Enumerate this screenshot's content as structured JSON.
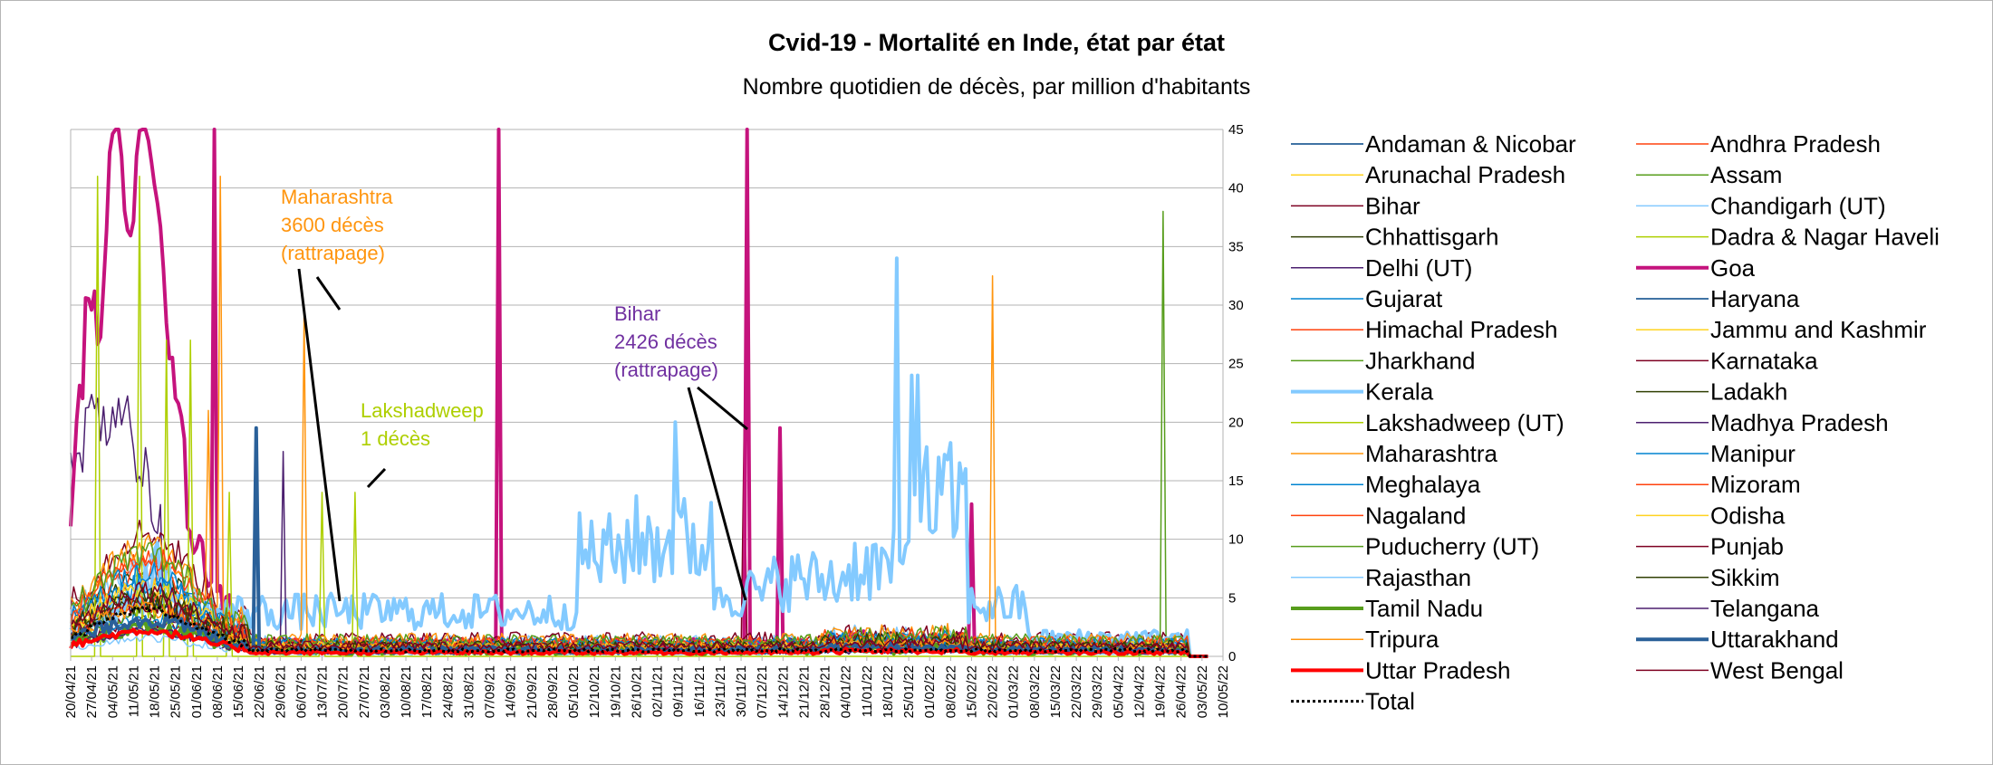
{
  "chart_data": {
    "type": "line",
    "title": "Cvid-19 - Mortalité en Inde, état par état",
    "subtitle": "Nombre quotidien de décès, par million d'habitants",
    "ylim": [
      0,
      45
    ],
    "yticks": [
      0,
      5,
      10,
      15,
      20,
      25,
      30,
      35,
      40,
      45
    ],
    "x_start": "2021-04-20",
    "x_end": "2022-05-10",
    "xticks": [
      "20/04/21",
      "27/04/21",
      "04/05/21",
      "11/05/21",
      "18/05/21",
      "25/05/21",
      "01/06/21",
      "08/06/21",
      "15/06/21",
      "22/06/21",
      "29/06/21",
      "06/07/21",
      "13/07/21",
      "20/07/21",
      "27/07/21",
      "03/08/21",
      "10/08/21",
      "17/08/21",
      "24/08/21",
      "31/08/21",
      "07/09/21",
      "14/09/21",
      "21/09/21",
      "28/09/21",
      "05/10/21",
      "12/10/21",
      "19/10/21",
      "26/10/21",
      "02/11/21",
      "09/11/21",
      "16/11/21",
      "23/11/21",
      "30/11/21",
      "07/12/21",
      "14/12/21",
      "21/12/21",
      "28/12/21",
      "04/01/22",
      "11/01/22",
      "18/01/22",
      "25/01/22",
      "01/02/22",
      "08/02/22",
      "15/02/22",
      "22/02/22",
      "01/03/22",
      "08/03/22",
      "15/03/22",
      "22/03/22",
      "29/03/22",
      "05/04/22",
      "12/04/22",
      "19/04/22",
      "26/04/22",
      "03/05/22",
      "10/05/22"
    ],
    "grid": true,
    "legend_position": "right",
    "series": [
      {
        "name": "Andaman & Nicobar",
        "color": "#004586",
        "lw": 1.5,
        "base": 0.6,
        "noise": 0.8
      },
      {
        "name": "Andhra Pradesh",
        "color": "#ff420e",
        "lw": 1.5,
        "base": 1.2,
        "noise": 0.8
      },
      {
        "name": "Arunachal Pradesh",
        "color": "#ffd320",
        "lw": 1.5,
        "base": 0.6,
        "noise": 0.9
      },
      {
        "name": "Assam",
        "color": "#579d1c",
        "lw": 1.5,
        "base": 0.8,
        "noise": 0.6,
        "spikes": [
          [
            365,
            38
          ]
        ]
      },
      {
        "name": "Bihar",
        "color": "#7e0021",
        "lw": 1.5,
        "base": 0.4,
        "noise": 0.5,
        "spikes": [
          [
            225,
            19.5
          ]
        ]
      },
      {
        "name": "Chandigarh (UT)",
        "color": "#83caff",
        "lw": 1.5,
        "base": 1.0,
        "noise": 1.2
      },
      {
        "name": "Chhattisgarh",
        "color": "#314004",
        "lw": 1.5,
        "base": 1.0,
        "noise": 0.8
      },
      {
        "name": "Dadra & Nagar Haveli",
        "color": "#aecf00",
        "lw": 1.5,
        "base": 0.5,
        "noise": 1.0
      },
      {
        "name": "Delhi (UT)",
        "color": "#4b1f6f",
        "lw": 1.5,
        "base": 0.5,
        "noise": 0.5,
        "early": [
          [
            0,
            16
          ],
          [
            5,
            19
          ],
          [
            12,
            21
          ],
          [
            20,
            19
          ],
          [
            30,
            12
          ]
        ]
      },
      {
        "name": "Goa",
        "color": "#c5137d",
        "lw": 4,
        "base": 0.8,
        "noise": 1.0,
        "spikes": [
          [
            48,
            45
          ],
          [
            143,
            45
          ],
          [
            226,
            45
          ],
          [
            237,
            19.5
          ],
          [
            301,
            13
          ]
        ],
        "early": [
          [
            0,
            12
          ],
          [
            5,
            28
          ],
          [
            10,
            30
          ],
          [
            14,
            45
          ],
          [
            20,
            38
          ],
          [
            25,
            45
          ],
          [
            28,
            40
          ],
          [
            35,
            22
          ],
          [
            42,
            8
          ],
          [
            55,
            3
          ]
        ]
      },
      {
        "name": "Gujarat",
        "color": "#0084d1",
        "lw": 1.5,
        "base": 0.4,
        "noise": 0.6
      },
      {
        "name": "Haryana",
        "color": "#004586",
        "lw": 1.5,
        "base": 0.6,
        "noise": 0.6
      },
      {
        "name": "Himachal Pradesh",
        "color": "#ff420e",
        "lw": 1.5,
        "base": 1.0,
        "noise": 0.8
      },
      {
        "name": "Jammu and Kashmir",
        "color": "#ffd320",
        "lw": 1.5,
        "base": 0.8,
        "noise": 0.7
      },
      {
        "name": "Jharkhand",
        "color": "#579d1c",
        "lw": 1.5,
        "base": 0.5,
        "noise": 0.6
      },
      {
        "name": "Karnataka",
        "color": "#7e0021",
        "lw": 1.5,
        "base": 1.5,
        "noise": 1.2
      },
      {
        "name": "Kerala",
        "color": "#83caff",
        "lw": 4,
        "base": 3.0,
        "noise": 3.5,
        "kerala": true
      },
      {
        "name": "Ladakh",
        "color": "#314004",
        "lw": 1.5,
        "base": 0.6,
        "noise": 1.0
      },
      {
        "name": "Lakshadweep (UT)",
        "color": "#aecf00",
        "lw": 1.5,
        "base": 0.0,
        "noise": 0.0,
        "spikes": [
          [
            9,
            41
          ],
          [
            23,
            41
          ],
          [
            32,
            27
          ],
          [
            40,
            27
          ],
          [
            53,
            14
          ],
          [
            84,
            14
          ],
          [
            95,
            14
          ]
        ]
      },
      {
        "name": "Madhya Pradesh",
        "color": "#4b1f6f",
        "lw": 1.5,
        "base": 0.3,
        "noise": 0.4,
        "spikes": [
          [
            71,
            17.5
          ]
        ]
      },
      {
        "name": "Maharashtra",
        "color": "#ff950e",
        "lw": 1.5,
        "base": 1.3,
        "noise": 1.2,
        "spikes": [
          [
            78,
            29.5
          ],
          [
            50,
            41
          ],
          [
            46,
            21
          ],
          [
            308,
            32.5
          ]
        ]
      },
      {
        "name": "Manipur",
        "color": "#0084d1",
        "lw": 1.5,
        "base": 1.0,
        "noise": 1.0
      },
      {
        "name": "Meghalaya",
        "color": "#0084d1",
        "lw": 1.5,
        "base": 0.8,
        "noise": 1.0
      },
      {
        "name": "Mizoram",
        "color": "#ff420e",
        "lw": 1.5,
        "base": 1.2,
        "noise": 1.0
      },
      {
        "name": "Nagaland",
        "color": "#ff420e",
        "lw": 1.5,
        "base": 0.6,
        "noise": 0.8
      },
      {
        "name": "Odisha",
        "color": "#ffd320",
        "lw": 1.5,
        "base": 0.8,
        "noise": 0.8
      },
      {
        "name": "Puducherry (UT)",
        "color": "#579d1c",
        "lw": 1.5,
        "base": 1.2,
        "noise": 1.2
      },
      {
        "name": "Punjab",
        "color": "#7e0021",
        "lw": 1.5,
        "base": 0.6,
        "noise": 0.8
      },
      {
        "name": "Rajasthan",
        "color": "#83caff",
        "lw": 1.5,
        "base": 0.2,
        "noise": 0.3
      },
      {
        "name": "Sikkim",
        "color": "#314004",
        "lw": 1.5,
        "base": 0.6,
        "noise": 1.0
      },
      {
        "name": "Tamil Nadu",
        "color": "#579d1c",
        "lw": 4,
        "base": 0.3,
        "noise": 0.5
      },
      {
        "name": "Telangana",
        "color": "#4b1f6f",
        "lw": 1.5,
        "base": 0.3,
        "noise": 0.3
      },
      {
        "name": "Tripura",
        "color": "#ff950e",
        "lw": 1.5,
        "base": 0.5,
        "noise": 0.8
      },
      {
        "name": "Uttarakhand",
        "color": "#2a6099",
        "lw": 4,
        "base": 0.4,
        "noise": 0.6,
        "spikes": [
          [
            62,
            19.5
          ]
        ]
      },
      {
        "name": "Uttar Pradesh",
        "color": "#ff0000",
        "lw": 4,
        "base": 0.3,
        "noise": 0.3
      },
      {
        "name": "West Bengal",
        "color": "#7e0021",
        "lw": 1.5,
        "base": 0.8,
        "noise": 0.8
      },
      {
        "name": "Total",
        "color": "#000000",
        "lw": 3,
        "dashed": true,
        "base": 0.6,
        "noise": 0.3
      }
    ],
    "annotations": [
      {
        "lines": [
          "Maharashtra",
          "3600 décès",
          "(rattrapage)"
        ],
        "color": "#ff950e"
      },
      {
        "lines": [
          "Lakshadweep",
          "1 décès"
        ],
        "color": "#aecf00"
      },
      {
        "lines": [
          "Bihar",
          "2426 décès",
          "(rattrapage)"
        ],
        "color": "#7030a0"
      }
    ]
  }
}
